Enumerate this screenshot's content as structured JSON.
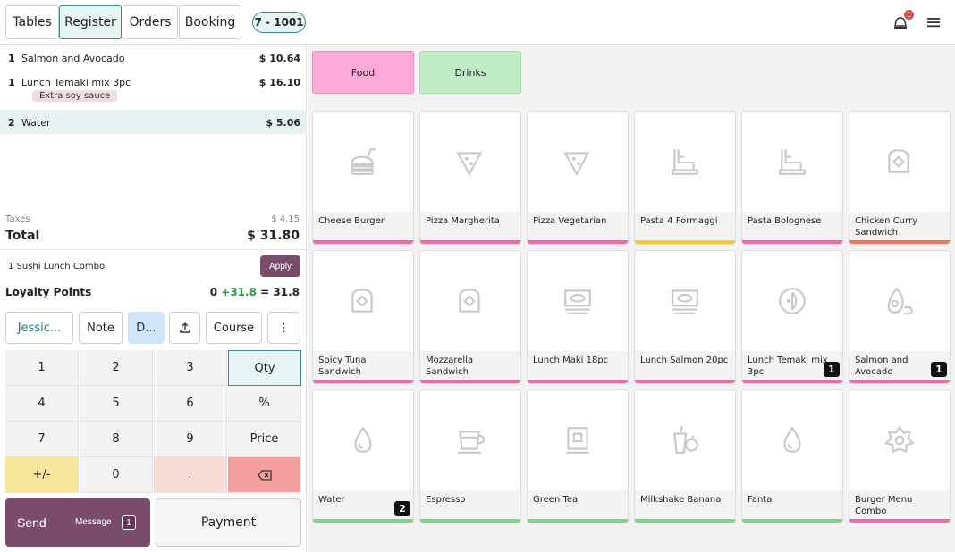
{
  "nav": {
    "tables": "Tables",
    "register": "Register",
    "orders": "Orders",
    "booking": "Booking",
    "table_badge": "7 - 1001",
    "notification_count": "1"
  },
  "order": {
    "lines": [
      {
        "qty": "1",
        "name": "Salmon and Avocado",
        "price": "$ 10.64"
      },
      {
        "qty": "1",
        "name": "Lunch Temaki mix 3pc",
        "price": "$ 16.10",
        "note": "Extra soy sauce"
      },
      {
        "qty": "2",
        "name": "Water",
        "price": "$ 5.06"
      }
    ],
    "taxes_label": "Taxes",
    "taxes_value": "$ 4.15",
    "total_label": "Total",
    "total_value": "$ 31.80"
  },
  "promo": {
    "text": "1 Sushi Lunch Combo",
    "apply_label": "Apply"
  },
  "loyalty": {
    "label": "Loyalty Points",
    "current": "0",
    "earned": "+31.8",
    "equals": "=",
    "total": "31.8"
  },
  "actions": {
    "customer": "Jessic...",
    "note": "Note",
    "discount": "D...",
    "course": "Course",
    "more": "⋮"
  },
  "numpad": {
    "k1": "1",
    "k2": "2",
    "k3": "3",
    "qty": "Qty",
    "k4": "4",
    "k5": "5",
    "k6": "6",
    "percent": "%",
    "k7": "7",
    "k8": "8",
    "k9": "9",
    "price": "Price",
    "plusminus": "+/-",
    "k0": "0",
    "dot": "."
  },
  "send": {
    "label": "Send",
    "message": "Message",
    "count": "1"
  },
  "payment": "Payment",
  "categories": [
    {
      "name": "Food",
      "color": "#fba9d6"
    },
    {
      "name": "Drinks",
      "color": "#bfecc4"
    }
  ],
  "products": [
    {
      "name": "Cheese Burger",
      "icon": "burger-icon",
      "bar": "#f06aab"
    },
    {
      "name": "Pizza Margherita",
      "icon": "pizza-icon",
      "bar": "#f06aab"
    },
    {
      "name": "Pizza Vegetarian",
      "icon": "pizza-icon",
      "bar": "#f06aab"
    },
    {
      "name": "Pasta 4 Formaggi",
      "icon": "pasta-icon",
      "bar": "#f5c842"
    },
    {
      "name": "Pasta Bolognese",
      "icon": "pasta-icon",
      "bar": "#f06aab"
    },
    {
      "name": "Chicken Curry Sandwich",
      "icon": "sandwich-icon",
      "bar": "#f07464"
    },
    {
      "name": "Spicy Tuna Sandwich",
      "icon": "sandwich-icon",
      "bar": "#f06aab"
    },
    {
      "name": "Mozzarella Sandwich",
      "icon": "sandwich-icon",
      "bar": "#f06aab"
    },
    {
      "name": "Lunch Maki 18pc",
      "icon": "sushi-icon",
      "bar": "#f06aab"
    },
    {
      "name": "Lunch Salmon 20pc",
      "icon": "sushi-icon",
      "bar": "#f06aab"
    },
    {
      "name": "Lunch Temaki mix 3pc",
      "icon": "temaki-icon",
      "bar": "#f06aab",
      "count": "1"
    },
    {
      "name": "Salmon and Avocado",
      "icon": "avocado-icon",
      "bar": "#f06aab",
      "count": "1"
    },
    {
      "name": "Water",
      "icon": "drop-icon",
      "bar": "#7fd48a",
      "count": "2"
    },
    {
      "name": "Espresso",
      "icon": "cup-icon",
      "bar": "#7fd48a"
    },
    {
      "name": "Green Tea",
      "icon": "tea-icon",
      "bar": "#7fd48a"
    },
    {
      "name": "Milkshake Banana",
      "icon": "milkshake-icon",
      "bar": "#7fd48a"
    },
    {
      "name": "Fanta",
      "icon": "drop-icon",
      "bar": "#7fd48a"
    },
    {
      "name": "Burger Menu Combo",
      "icon": "combo-icon",
      "bar": "#f06aab"
    }
  ]
}
